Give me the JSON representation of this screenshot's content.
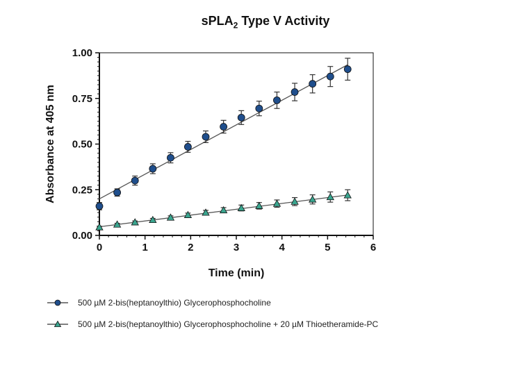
{
  "chart_data": {
    "type": "scatter",
    "title_parts": [
      "sPLA",
      "2",
      " Type V Activity"
    ],
    "title": "sPLA2 Type V Activity",
    "xlabel": "Time (min)",
    "ylabel": "Absorbance at 405 nm",
    "xlim": [
      0,
      6
    ],
    "ylim": [
      0,
      1
    ],
    "xticks": [
      "0",
      "1",
      "2",
      "3",
      "4",
      "5",
      "6"
    ],
    "yticks": [
      "0.00",
      "0.25",
      "0.50",
      "0.75",
      "1.00"
    ],
    "grid": false,
    "legend_position": "bottom",
    "x": [
      0,
      0.39,
      0.78,
      1.17,
      1.56,
      1.94,
      2.33,
      2.72,
      3.11,
      3.5,
      3.89,
      4.28,
      4.67,
      5.06,
      5.44
    ],
    "series": [
      {
        "name": "500 µM 2-bis(heptanoylthio) Glycerophosphocholine",
        "marker": "circle",
        "color": "#1f4e8c",
        "values": [
          0.16,
          0.235,
          0.3,
          0.365,
          0.425,
          0.485,
          0.54,
          0.595,
          0.645,
          0.695,
          0.74,
          0.785,
          0.83,
          0.87,
          0.91
        ],
        "errors": [
          0.02,
          0.02,
          0.025,
          0.027,
          0.028,
          0.03,
          0.032,
          0.035,
          0.038,
          0.04,
          0.045,
          0.048,
          0.05,
          0.055,
          0.06
        ],
        "fit": {
          "intercept": 0.2,
          "slope": 0.135
        }
      },
      {
        "name": "500 µM 2-bis(heptanoylthio) Glycerophosphocholine + 20 µM Thioetheramide-PC",
        "marker": "triangle",
        "color": "#3aa58f",
        "values": [
          0.045,
          0.06,
          0.072,
          0.085,
          0.098,
          0.112,
          0.125,
          0.138,
          0.15,
          0.162,
          0.174,
          0.185,
          0.197,
          0.21,
          0.22
        ],
        "errors": [
          0.005,
          0.006,
          0.007,
          0.008,
          0.009,
          0.01,
          0.012,
          0.014,
          0.016,
          0.018,
          0.02,
          0.022,
          0.025,
          0.028,
          0.03
        ],
        "fit": {
          "intercept": 0.047,
          "slope": 0.032
        }
      }
    ]
  }
}
